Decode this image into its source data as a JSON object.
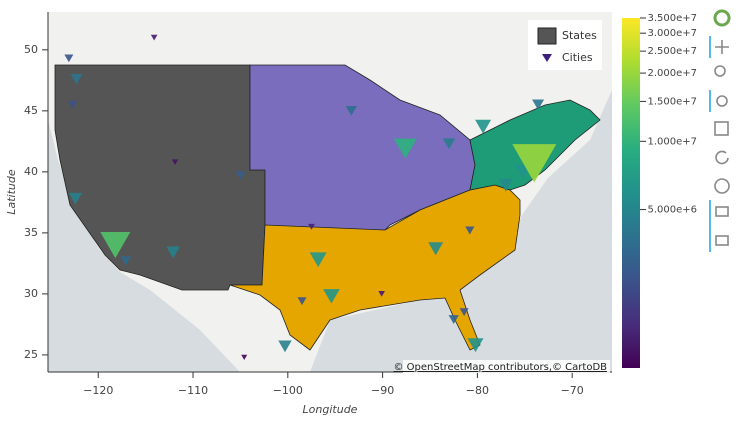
{
  "chart_data": {
    "type": "map",
    "xlabel": "Longitude",
    "ylabel": "Latitude",
    "xlim": [
      -125.3,
      -65.8
    ],
    "ylim": [
      23.6,
      53.1
    ],
    "xticks": [
      {
        "value": -120,
        "label": "−120"
      },
      {
        "value": -110,
        "label": "−110"
      },
      {
        "value": -100,
        "label": "−100"
      },
      {
        "value": -90,
        "label": "−90"
      },
      {
        "value": -80,
        "label": "−80"
      },
      {
        "value": -70,
        "label": "−70"
      }
    ],
    "yticks": [
      25,
      30,
      35,
      40,
      45,
      50
    ],
    "legend": [
      "States",
      "Cities"
    ],
    "legend_colors": [
      "#555555",
      "#3b1f7a"
    ],
    "region_colors": [
      "#555555",
      "#7b6dbd",
      "#e5a600",
      "#1e9c78"
    ],
    "cities": {
      "x": [
        -74.0,
        -118.2,
        -87.6,
        -96.8,
        -95.4,
        -84.4,
        -80.2,
        -79.4,
        -100.3,
        -77.0,
        -75.2,
        -73.6,
        -112.1,
        -122.4,
        -122.3,
        -123.1,
        -105.0,
        -117.1,
        -93.3,
        -83.0,
        -97.5,
        -90.1,
        -98.5,
        -81.4,
        -122.7,
        -114.1,
        -104.6,
        -82.5,
        -80.8,
        -111.9
      ],
      "y": [
        40.7,
        34.0,
        41.9,
        32.8,
        29.8,
        33.7,
        25.8,
        43.7,
        25.7,
        38.9,
        40.0,
        45.5,
        33.4,
        37.8,
        47.6,
        49.3,
        39.7,
        32.7,
        45.0,
        42.3,
        35.5,
        30.0,
        29.4,
        28.5,
        45.5,
        51.0,
        24.8,
        27.9,
        35.2,
        40.8
      ],
      "values": [
        20000000,
        13000000,
        9500000,
        6500000,
        6300000,
        5500000,
        6000000,
        6000000,
        4700000,
        5300000,
        6000000,
        4000000,
        4800000,
        4700000,
        4000000,
        2500000,
        2900000,
        3300000,
        3600000,
        4300000,
        1400000,
        1300000,
        2500000,
        2500000,
        2400000,
        1300000,
        1000000,
        3100000,
        2600000,
        1200000
      ]
    },
    "colorbar": {
      "log": true,
      "lim": [
        1000000,
        35000000
      ],
      "ticks": [
        {
          "value": 35000000,
          "label": "3.500e+7"
        },
        {
          "value": 30000000,
          "label": "3.000e+7"
        },
        {
          "value": 25000000,
          "label": "2.500e+7"
        },
        {
          "value": 20000000,
          "label": "2.000e+7"
        },
        {
          "value": 15000000,
          "label": "1.500e+7"
        },
        {
          "value": 10000000,
          "label": "1.000e+7"
        },
        {
          "value": 5000000,
          "label": "5.000e+6"
        }
      ],
      "palette": [
        "#440154",
        "#472d7b",
        "#3b528b",
        "#2c728e",
        "#21918c",
        "#28ae80",
        "#5ec962",
        "#addc30",
        "#fde725"
      ]
    },
    "attribution": "© OpenStreetMap contributors,© CartoDB"
  }
}
